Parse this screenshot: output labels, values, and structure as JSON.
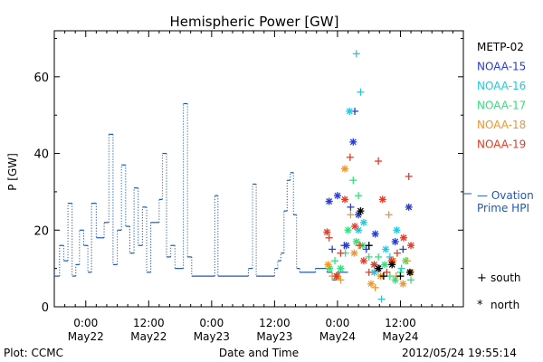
{
  "chart_data": {
    "type": "line",
    "title": "Hemispheric Power [GW]",
    "ylabel": "P [GW]",
    "xlabel": "Date and Time",
    "ylim": [
      0,
      72
    ],
    "yticks": [
      0,
      20,
      40,
      60
    ],
    "x_unit": "hours since May21 18:00",
    "xlim": [
      0,
      78
    ],
    "xticks": [
      {
        "x": 6,
        "time": "0:00",
        "date": "May22"
      },
      {
        "x": 18,
        "time": "12:00",
        "date": "May22"
      },
      {
        "x": 30,
        "time": "0:00",
        "date": "May23"
      },
      {
        "x": 42,
        "time": "12:00",
        "date": "May23"
      },
      {
        "x": 54,
        "time": "0:00",
        "date": "May24"
      },
      {
        "x": 66,
        "time": "12:00",
        "date": "May24"
      }
    ],
    "legend_placement": "right",
    "legend": [
      {
        "name": "METP-02",
        "color": "#000000"
      },
      {
        "name": "NOAA-15",
        "color": "#2a3cc8"
      },
      {
        "name": "NOAA-16",
        "color": "#22c8e0"
      },
      {
        "name": "NOAA-17",
        "color": "#33e07a"
      },
      {
        "name": "NOAA-18",
        "color": "#f0962a"
      },
      {
        "name": "NOAA-19",
        "color": "#e03c28"
      }
    ],
    "ovation": {
      "label_line1": "— Ovation",
      "label_line2": "Prime HPI",
      "color": "#1e5ab4",
      "points": [
        [
          0,
          8
        ],
        [
          1,
          8
        ],
        [
          1,
          16
        ],
        [
          1.8,
          16
        ],
        [
          1.8,
          12
        ],
        [
          2.6,
          12
        ],
        [
          2.6,
          27
        ],
        [
          3.4,
          27
        ],
        [
          3.4,
          8
        ],
        [
          4.1,
          8
        ],
        [
          4.1,
          11
        ],
        [
          4.8,
          11
        ],
        [
          4.8,
          20
        ],
        [
          5.6,
          20
        ],
        [
          5.6,
          16
        ],
        [
          6.4,
          16
        ],
        [
          6.4,
          9
        ],
        [
          7.1,
          9
        ],
        [
          7.1,
          27
        ],
        [
          8,
          27
        ],
        [
          8,
          18
        ],
        [
          9.5,
          18
        ],
        [
          9.5,
          22
        ],
        [
          10.4,
          22
        ],
        [
          10.4,
          45
        ],
        [
          11.2,
          45
        ],
        [
          11.2,
          11
        ],
        [
          12,
          11
        ],
        [
          12,
          20
        ],
        [
          12.8,
          20
        ],
        [
          12.8,
          37
        ],
        [
          13.6,
          37
        ],
        [
          13.6,
          21
        ],
        [
          14.4,
          21
        ],
        [
          14.4,
          14
        ],
        [
          15.2,
          14
        ],
        [
          15.2,
          31
        ],
        [
          16,
          31
        ],
        [
          16,
          16
        ],
        [
          16.8,
          16
        ],
        [
          16.8,
          26
        ],
        [
          17.6,
          26
        ],
        [
          17.6,
          9
        ],
        [
          18.4,
          9
        ],
        [
          18.4,
          22
        ],
        [
          20,
          22
        ],
        [
          20,
          28
        ],
        [
          20.6,
          28
        ],
        [
          20.6,
          40
        ],
        [
          21.4,
          40
        ],
        [
          21.4,
          13
        ],
        [
          22.2,
          13
        ],
        [
          22.2,
          16
        ],
        [
          23,
          16
        ],
        [
          23,
          10
        ],
        [
          24.6,
          10
        ],
        [
          24.6,
          53
        ],
        [
          25.4,
          53
        ],
        [
          25.4,
          13
        ],
        [
          26.2,
          13
        ],
        [
          26.2,
          8
        ],
        [
          30.6,
          8
        ],
        [
          30.6,
          29
        ],
        [
          31.2,
          29
        ],
        [
          31.2,
          8
        ],
        [
          37,
          8
        ],
        [
          37,
          10
        ],
        [
          37.8,
          10
        ],
        [
          37.8,
          32
        ],
        [
          38.5,
          32
        ],
        [
          38.5,
          8
        ],
        [
          42,
          8
        ],
        [
          42,
          10
        ],
        [
          42.6,
          10
        ],
        [
          42.6,
          12
        ],
        [
          43.2,
          12
        ],
        [
          43.2,
          14
        ],
        [
          43.8,
          14
        ],
        [
          43.8,
          25
        ],
        [
          44.4,
          25
        ],
        [
          44.4,
          33
        ],
        [
          45,
          33
        ],
        [
          45,
          35
        ],
        [
          45.6,
          35
        ],
        [
          45.6,
          24
        ],
        [
          46.2,
          24
        ],
        [
          46.2,
          10
        ],
        [
          46.8,
          10
        ],
        [
          46.8,
          9
        ],
        [
          49.8,
          9
        ],
        [
          49.8,
          10
        ],
        [
          52,
          10
        ],
        [
          52,
          9
        ],
        [
          53,
          9
        ],
        [
          53,
          7
        ],
        [
          53.8,
          7
        ],
        [
          53.8,
          9
        ],
        [
          56,
          9
        ],
        [
          56,
          9
        ]
      ]
    },
    "series_markers": {
      "NOAA-15": [
        [
          52.4,
          27.5
        ],
        [
          53,
          15
        ],
        [
          54,
          29
        ],
        [
          55.3,
          16
        ],
        [
          55.7,
          16
        ],
        [
          56.5,
          26
        ],
        [
          57,
          43
        ],
        [
          57.3,
          51
        ],
        [
          58,
          24
        ],
        [
          59.5,
          15
        ],
        [
          61.2,
          19
        ],
        [
          62,
          10
        ],
        [
          65,
          17
        ],
        [
          66.5,
          15
        ],
        [
          67.6,
          26
        ]
      ],
      "NOAA-16": [
        [
          56.3,
          51
        ],
        [
          57.6,
          66
        ],
        [
          58,
          20
        ],
        [
          58.4,
          56
        ],
        [
          59,
          22
        ],
        [
          60,
          16
        ],
        [
          61,
          9
        ],
        [
          62.4,
          2
        ],
        [
          63.2,
          15
        ],
        [
          64,
          13
        ],
        [
          65.3,
          20
        ],
        [
          66.2,
          10
        ]
      ],
      "NOAA-17": [
        [
          52.5,
          10
        ],
        [
          53.5,
          12
        ],
        [
          54.6,
          10
        ],
        [
          55.5,
          14
        ],
        [
          56,
          20
        ],
        [
          57,
          33
        ],
        [
          57.6,
          17
        ],
        [
          58,
          29
        ],
        [
          58.8,
          16
        ],
        [
          60,
          13
        ],
        [
          61,
          11
        ],
        [
          61.8,
          13
        ],
        [
          63,
          11
        ],
        [
          64,
          8
        ],
        [
          65,
          7
        ],
        [
          66,
          9
        ],
        [
          67,
          12
        ],
        [
          68,
          7
        ]
      ],
      "NOAA-18": [
        [
          52.2,
          11
        ],
        [
          53,
          8
        ],
        [
          54,
          8
        ],
        [
          54.6,
          7
        ],
        [
          55.4,
          36
        ],
        [
          56.5,
          24
        ],
        [
          57.2,
          14
        ],
        [
          58,
          16
        ],
        [
          60.4,
          6
        ],
        [
          61.2,
          5
        ],
        [
          62.2,
          8
        ],
        [
          63.8,
          24
        ],
        [
          64.6,
          12
        ],
        [
          65.2,
          8
        ],
        [
          66.5,
          6
        ],
        [
          67.3,
          12
        ],
        [
          68,
          9
        ]
      ],
      "NOAA-19": [
        [
          52,
          19.5
        ],
        [
          52.4,
          18
        ],
        [
          53.8,
          8
        ],
        [
          54.6,
          14
        ],
        [
          55.4,
          28
        ],
        [
          56.4,
          39
        ],
        [
          57.3,
          21
        ],
        [
          58.3,
          16
        ],
        [
          59,
          12
        ],
        [
          60,
          9
        ],
        [
          61,
          11
        ],
        [
          61.8,
          38
        ],
        [
          62.6,
          28
        ],
        [
          63.4,
          9
        ],
        [
          64.3,
          12
        ],
        [
          65.4,
          14
        ],
        [
          66.6,
          18
        ],
        [
          67.6,
          34
        ],
        [
          68,
          16
        ]
      ],
      "METP-02": [
        [
          58.4,
          25
        ],
        [
          60,
          16
        ],
        [
          61.8,
          10
        ],
        [
          62.8,
          8
        ],
        [
          64.4,
          11
        ],
        [
          66,
          8
        ],
        [
          67.8,
          9
        ]
      ]
    },
    "symbol_key": [
      {
        "symbol": "+",
        "label": "south"
      },
      {
        "symbol": "*",
        "label": "north"
      }
    ]
  },
  "footer": {
    "plot_source": "Plot: CCMC",
    "timestamp": "2012/05/24 19:55:14"
  }
}
